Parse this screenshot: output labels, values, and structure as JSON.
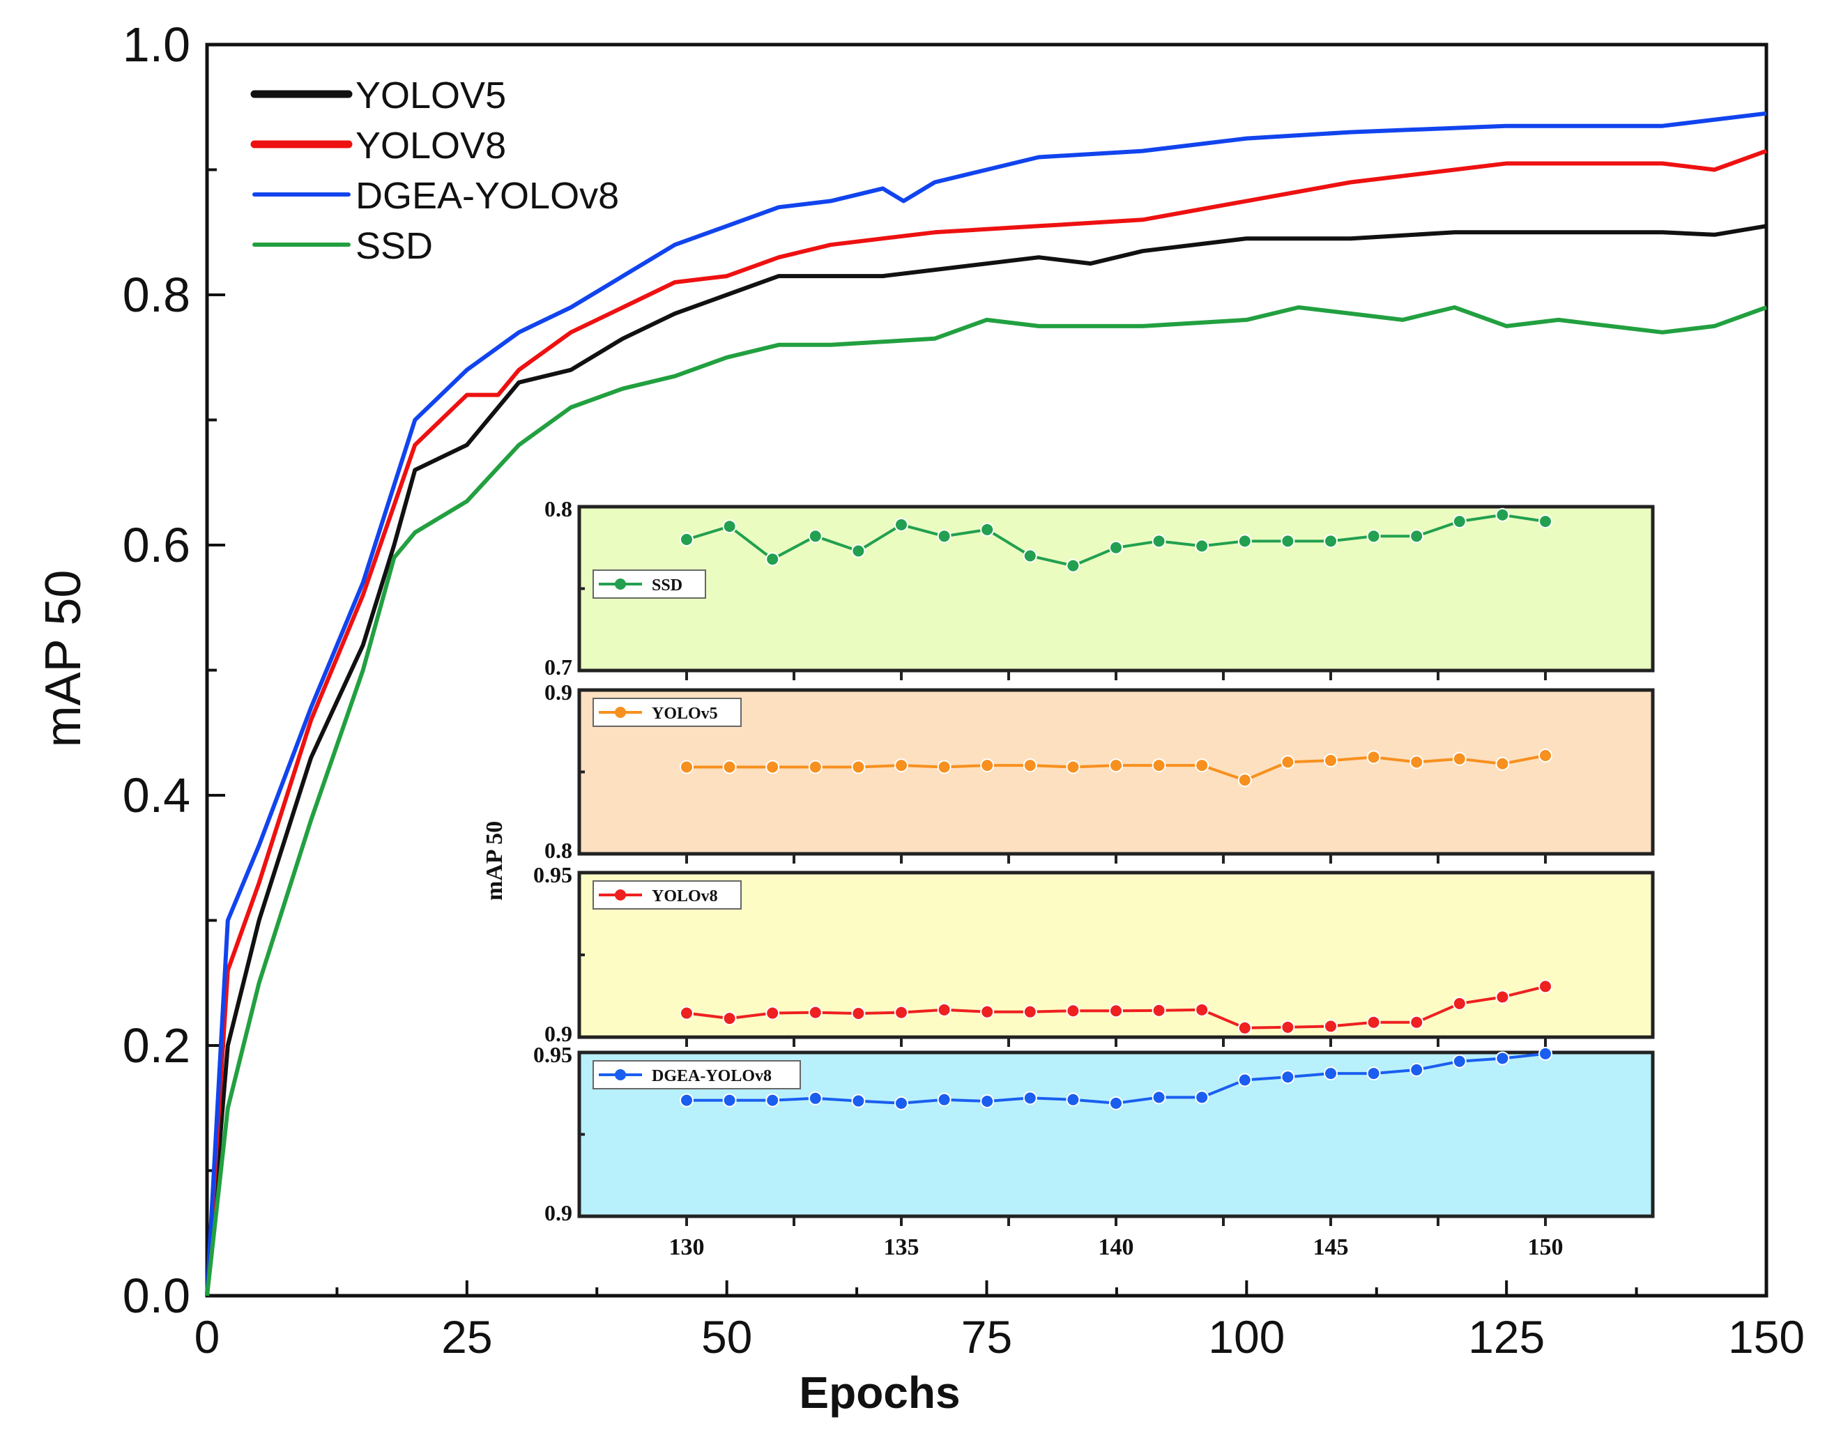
{
  "chart_data": [
    {
      "type": "line",
      "title": "",
      "xlabel": "Epochs",
      "ylabel": "mAP 50",
      "xlim": [
        0,
        150
      ],
      "ylim": [
        0,
        1.0
      ],
      "xticks": [
        "0",
        "25",
        "50",
        "75",
        "100",
        "125",
        "150"
      ],
      "yticks": [
        "0.0",
        "0.2",
        "0.4",
        "0.6",
        "0.8",
        "1.0"
      ],
      "legend_position": "top-left",
      "series": [
        {
          "name": "YOLOV5",
          "color": "#111111",
          "x": [
            0,
            2,
            5,
            10,
            15,
            18,
            20,
            25,
            30,
            35,
            40,
            45,
            50,
            55,
            60,
            65,
            70,
            80,
            85,
            90,
            100,
            110,
            120,
            130,
            140,
            145,
            150
          ],
          "y": [
            0,
            0.2,
            0.3,
            0.43,
            0.52,
            0.6,
            0.66,
            0.68,
            0.73,
            0.74,
            0.765,
            0.785,
            0.8,
            0.815,
            0.815,
            0.815,
            0.82,
            0.83,
            0.825,
            0.835,
            0.845,
            0.845,
            0.85,
            0.85,
            0.85,
            0.848,
            0.855
          ]
        },
        {
          "name": "YOLOV8",
          "color": "#ee1111",
          "x": [
            0,
            2,
            5,
            10,
            15,
            20,
            25,
            28,
            30,
            35,
            40,
            45,
            50,
            55,
            60,
            65,
            70,
            80,
            90,
            100,
            110,
            120,
            125,
            130,
            140,
            145,
            150
          ],
          "y": [
            0,
            0.26,
            0.33,
            0.46,
            0.56,
            0.68,
            0.72,
            0.72,
            0.74,
            0.77,
            0.79,
            0.81,
            0.815,
            0.83,
            0.84,
            0.845,
            0.85,
            0.855,
            0.86,
            0.875,
            0.89,
            0.9,
            0.905,
            0.905,
            0.905,
            0.9,
            0.915
          ]
        },
        {
          "name": "DGEA-YOLOv8",
          "color": "#1144ee",
          "x": [
            0,
            2,
            5,
            10,
            15,
            20,
            25,
            30,
            35,
            40,
            45,
            50,
            55,
            60,
            65,
            67,
            70,
            75,
            80,
            90,
            100,
            110,
            125,
            140,
            150
          ],
          "y": [
            0,
            0.3,
            0.36,
            0.47,
            0.57,
            0.7,
            0.74,
            0.77,
            0.79,
            0.815,
            0.84,
            0.855,
            0.87,
            0.875,
            0.885,
            0.875,
            0.89,
            0.9,
            0.91,
            0.915,
            0.925,
            0.93,
            0.935,
            0.935,
            0.945
          ]
        },
        {
          "name": "SSD",
          "color": "#22a040",
          "x": [
            0,
            2,
            5,
            10,
            15,
            18,
            20,
            25,
            30,
            35,
            40,
            45,
            50,
            55,
            60,
            70,
            75,
            80,
            90,
            100,
            105,
            110,
            115,
            120,
            125,
            130,
            135,
            140,
            145,
            150
          ],
          "y": [
            0,
            0.15,
            0.25,
            0.38,
            0.5,
            0.59,
            0.61,
            0.635,
            0.68,
            0.71,
            0.725,
            0.735,
            0.75,
            0.76,
            0.76,
            0.765,
            0.78,
            0.775,
            0.775,
            0.78,
            0.79,
            0.785,
            0.78,
            0.79,
            0.775,
            0.78,
            0.775,
            0.77,
            0.775,
            0.79
          ]
        }
      ]
    },
    {
      "type": "line",
      "title": "",
      "xlabel": "",
      "ylabel": "mAP 50",
      "xlim": [
        127.5,
        152.5
      ],
      "xticks": [
        "130",
        "135",
        "140",
        "145",
        "150"
      ],
      "x": [
        130,
        131,
        132,
        133,
        134,
        135,
        136,
        137,
        138,
        139,
        140,
        141,
        142,
        143,
        144,
        145,
        146,
        147,
        148,
        149,
        150
      ],
      "panels": [
        {
          "name": "SSD",
          "color": "#22a050",
          "bg": "#eafcc0",
          "ylim": [
            0.7,
            0.8
          ],
          "yticks": [
            "0.7",
            "0.8"
          ],
          "y": [
            0.78,
            0.788,
            0.768,
            0.782,
            0.773,
            0.789,
            0.782,
            0.786,
            0.77,
            0.764,
            0.775,
            0.779,
            0.776,
            0.779,
            0.779,
            0.779,
            0.782,
            0.782,
            0.791,
            0.795,
            0.791
          ]
        },
        {
          "name": "YOLOv5",
          "color": "#f7901e",
          "bg": "#fde0c0",
          "ylim": [
            0.8,
            0.9
          ],
          "yticks": [
            "0.8",
            "0.9"
          ],
          "y": [
            0.853,
            0.853,
            0.853,
            0.853,
            0.853,
            0.854,
            0.853,
            0.854,
            0.854,
            0.853,
            0.854,
            0.854,
            0.854,
            0.845,
            0.856,
            0.857,
            0.859,
            0.856,
            0.858,
            0.855,
            0.86
          ]
        },
        {
          "name": "YOLOv8",
          "color": "#ee2020",
          "bg": "#fdfcc4",
          "ylim": [
            0.9,
            0.95
          ],
          "yticks": [
            "0.9",
            "0.95"
          ],
          "y": [
            0.9073,
            0.9057,
            0.9073,
            0.9075,
            0.9072,
            0.9075,
            0.9083,
            0.9077,
            0.9077,
            0.908,
            0.908,
            0.9081,
            0.9083,
            0.9028,
            0.903,
            0.9033,
            0.9045,
            0.9045,
            0.9102,
            0.9122,
            0.9154
          ]
        },
        {
          "name": "DGEA-YOLOv8",
          "color": "#1a5ef0",
          "bg": "#b8f0fb",
          "ylim": [
            0.9,
            0.95
          ],
          "yticks": [
            "0.9",
            "0.95"
          ],
          "y": [
            0.9354,
            0.9354,
            0.9354,
            0.936,
            0.9352,
            0.9345,
            0.9356,
            0.9351,
            0.9361,
            0.9356,
            0.9345,
            0.9363,
            0.9363,
            0.9416,
            0.9425,
            0.9436,
            0.9436,
            0.9447,
            0.9473,
            0.9482,
            0.9496
          ]
        }
      ]
    }
  ]
}
